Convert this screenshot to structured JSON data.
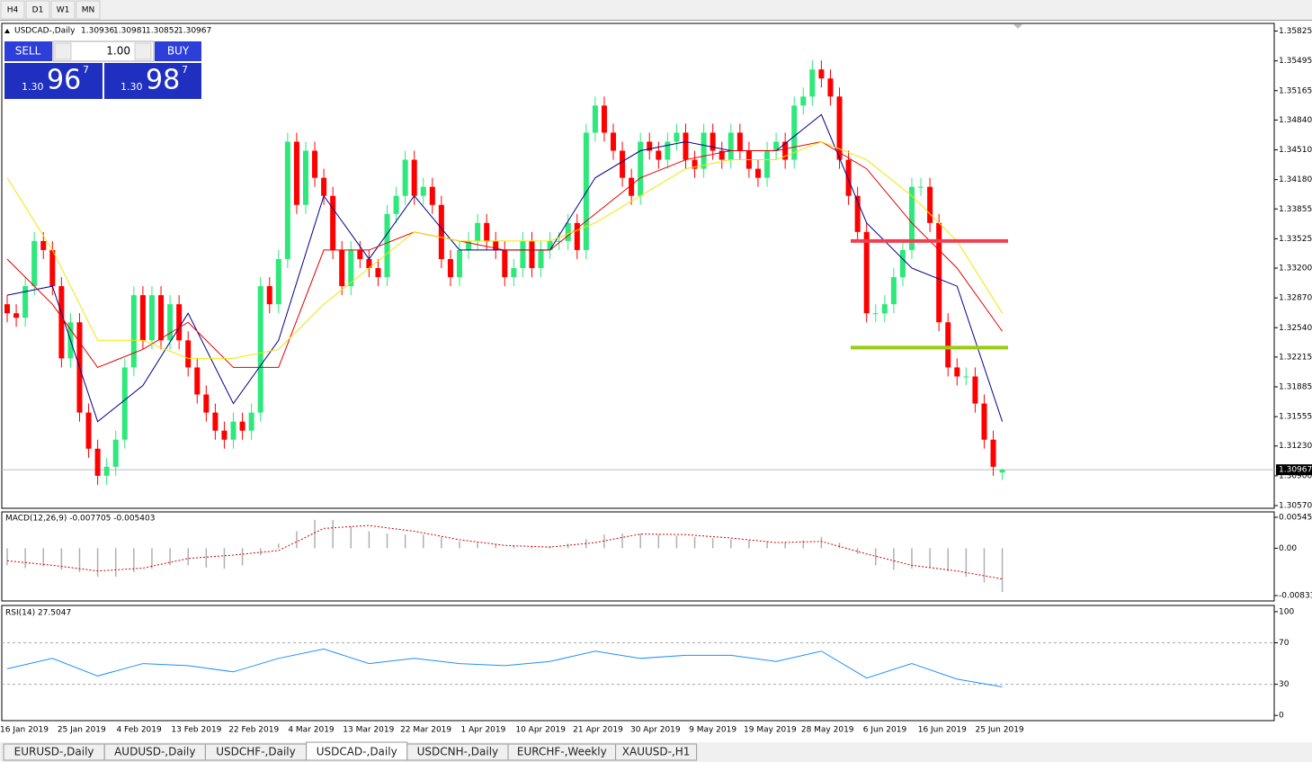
{
  "toolbar": {
    "timeframes": [
      "H4",
      "D1",
      "W1",
      "MN"
    ]
  },
  "tabs": {
    "items": [
      "EURUSD-,Daily",
      "AUDUSD-,Daily",
      "USDCHF-,Daily",
      "USDCAD-,Daily",
      "USDCNH-,Daily",
      "EURCHF-,Weekly",
      "XAUUSD-,H1"
    ],
    "active": 3
  },
  "trade_panel": {
    "volume": "1.00",
    "sell": {
      "label": "SELL",
      "prefix": "1.30",
      "main": "96",
      "sup": "7"
    },
    "buy": {
      "label": "BUY",
      "prefix": "1.30",
      "main": "98",
      "sup": "7"
    }
  },
  "chart_data": [
    {
      "type": "candlestick",
      "title": "USDCAD-,Daily",
      "header_values": [
        "1.30936",
        "1.30981",
        "1.30852",
        "1.30967"
      ],
      "last_price": 1.30967,
      "open": [
        1.328,
        1.327,
        1.3265,
        1.33,
        1.335,
        1.334,
        1.33,
        1.322,
        1.326,
        1.316,
        1.312,
        1.309,
        1.31,
        1.313,
        1.321,
        1.329,
        1.324,
        1.329,
        1.324,
        1.328,
        1.324,
        1.321,
        1.318,
        1.316,
        1.314,
        1.313,
        1.315,
        1.314,
        1.316,
        1.33,
        1.328,
        1.333,
        1.346,
        1.339,
        1.345,
        1.342,
        1.34,
        1.334,
        1.33,
        1.334,
        1.333,
        1.332,
        1.331,
        1.338,
        1.34,
        1.344,
        1.34,
        1.341,
        1.339,
        1.333,
        1.331,
        1.334,
        1.335,
        1.337,
        1.335,
        1.334,
        1.331,
        1.332,
        1.335,
        1.332,
        1.334,
        1.335,
        1.335,
        1.337,
        1.334,
        1.347,
        1.35,
        1.347,
        1.345,
        1.342,
        1.34,
        1.346,
        1.345,
        1.344,
        1.346,
        1.347,
        1.344,
        1.343,
        1.347,
        1.345,
        1.344,
        1.347,
        1.345,
        1.343,
        1.342,
        1.345,
        1.346,
        1.344,
        1.35,
        1.351,
        1.354,
        1.353,
        1.351,
        1.344,
        1.34,
        1.336,
        1.327,
        1.327,
        1.328,
        1.331,
        1.334,
        1.341,
        1.341,
        1.337,
        1.326,
        1.321,
        1.32,
        1.32,
        1.317,
        1.313,
        1.30936
      ],
      "high": [
        1.329,
        1.328,
        1.331,
        1.336,
        1.336,
        1.335,
        1.331,
        1.327,
        1.327,
        1.317,
        1.313,
        1.311,
        1.314,
        1.322,
        1.33,
        1.33,
        1.33,
        1.33,
        1.329,
        1.329,
        1.325,
        1.322,
        1.319,
        1.317,
        1.315,
        1.316,
        1.316,
        1.317,
        1.331,
        1.331,
        1.334,
        1.347,
        1.347,
        1.346,
        1.346,
        1.343,
        1.341,
        1.335,
        1.335,
        1.335,
        1.334,
        1.333,
        1.339,
        1.341,
        1.345,
        1.345,
        1.342,
        1.342,
        1.34,
        1.334,
        1.335,
        1.336,
        1.338,
        1.338,
        1.336,
        1.335,
        1.333,
        1.336,
        1.336,
        1.335,
        1.336,
        1.336,
        1.338,
        1.338,
        1.348,
        1.351,
        1.351,
        1.348,
        1.346,
        1.343,
        1.347,
        1.347,
        1.346,
        1.347,
        1.348,
        1.348,
        1.345,
        1.348,
        1.348,
        1.346,
        1.348,
        1.348,
        1.346,
        1.344,
        1.346,
        1.347,
        1.347,
        1.351,
        1.352,
        1.355,
        1.355,
        1.354,
        1.352,
        1.345,
        1.341,
        1.337,
        1.328,
        1.329,
        1.332,
        1.335,
        1.342,
        1.342,
        1.342,
        1.338,
        1.327,
        1.322,
        1.321,
        1.321,
        1.318,
        1.314,
        1.30981
      ],
      "low": [
        1.326,
        1.3255,
        1.3255,
        1.329,
        1.333,
        1.329,
        1.321,
        1.321,
        1.315,
        1.311,
        1.308,
        1.308,
        1.309,
        1.312,
        1.32,
        1.323,
        1.323,
        1.323,
        1.323,
        1.323,
        1.32,
        1.317,
        1.315,
        1.313,
        1.312,
        1.312,
        1.313,
        1.313,
        1.315,
        1.327,
        1.327,
        1.332,
        1.338,
        1.338,
        1.341,
        1.339,
        1.333,
        1.329,
        1.329,
        1.332,
        1.331,
        1.33,
        1.33,
        1.337,
        1.339,
        1.339,
        1.339,
        1.338,
        1.332,
        1.33,
        1.33,
        1.333,
        1.334,
        1.334,
        1.333,
        1.33,
        1.33,
        1.331,
        1.331,
        1.331,
        1.333,
        1.334,
        1.334,
        1.333,
        1.333,
        1.346,
        1.346,
        1.344,
        1.341,
        1.339,
        1.339,
        1.344,
        1.343,
        1.343,
        1.345,
        1.343,
        1.342,
        1.342,
        1.344,
        1.343,
        1.343,
        1.344,
        1.342,
        1.341,
        1.341,
        1.344,
        1.343,
        1.343,
        1.349,
        1.35,
        1.352,
        1.35,
        1.343,
        1.339,
        1.335,
        1.326,
        1.326,
        1.326,
        1.327,
        1.33,
        1.333,
        1.34,
        1.336,
        1.325,
        1.32,
        1.319,
        1.319,
        1.316,
        1.312,
        1.309,
        1.30852
      ],
      "close": [
        1.327,
        1.3265,
        1.33,
        1.335,
        1.334,
        1.33,
        1.322,
        1.326,
        1.316,
        1.312,
        1.309,
        1.31,
        1.313,
        1.321,
        1.329,
        1.324,
        1.329,
        1.324,
        1.328,
        1.324,
        1.321,
        1.318,
        1.316,
        1.314,
        1.313,
        1.315,
        1.314,
        1.316,
        1.33,
        1.328,
        1.333,
        1.346,
        1.339,
        1.345,
        1.342,
        1.34,
        1.334,
        1.33,
        1.334,
        1.333,
        1.332,
        1.331,
        1.338,
        1.34,
        1.344,
        1.34,
        1.341,
        1.339,
        1.333,
        1.331,
        1.334,
        1.335,
        1.337,
        1.335,
        1.334,
        1.331,
        1.332,
        1.335,
        1.332,
        1.334,
        1.335,
        1.335,
        1.337,
        1.334,
        1.347,
        1.35,
        1.347,
        1.345,
        1.342,
        1.34,
        1.346,
        1.345,
        1.344,
        1.346,
        1.347,
        1.344,
        1.343,
        1.347,
        1.345,
        1.344,
        1.347,
        1.345,
        1.343,
        1.342,
        1.345,
        1.346,
        1.344,
        1.35,
        1.351,
        1.354,
        1.353,
        1.351,
        1.344,
        1.34,
        1.336,
        1.327,
        1.327,
        1.328,
        1.331,
        1.334,
        1.341,
        1.341,
        1.337,
        1.326,
        1.321,
        1.32,
        1.32,
        1.317,
        1.313,
        1.31,
        1.30967
      ],
      "up_color": "#2ee87c",
      "down_color": "#ff0000",
      "lines": [
        {
          "color": "#00008b",
          "values": [
            1.329,
            1.33,
            1.315,
            1.319,
            1.327,
            1.317,
            1.324,
            1.34,
            1.333,
            1.34,
            1.334,
            1.334,
            1.334,
            1.342,
            1.345,
            1.346,
            1.345,
            1.345,
            1.349,
            1.337,
            1.332,
            1.33,
            1.315
          ]
        },
        {
          "color": "#e00000",
          "values": [
            1.333,
            1.328,
            1.321,
            1.323,
            1.326,
            1.321,
            1.321,
            1.334,
            1.334,
            1.336,
            1.335,
            1.334,
            1.334,
            1.338,
            1.342,
            1.344,
            1.345,
            1.345,
            1.346,
            1.343,
            1.337,
            1.332,
            1.325
          ]
        },
        {
          "color": "#f2e600",
          "values": [
            1.342,
            1.334,
            1.324,
            1.324,
            1.322,
            1.322,
            1.323,
            1.328,
            1.332,
            1.336,
            1.335,
            1.335,
            1.335,
            1.337,
            1.34,
            1.343,
            1.344,
            1.344,
            1.346,
            1.344,
            1.34,
            1.335,
            1.327
          ]
        }
      ],
      "levels": [
        {
          "value": 1.335,
          "color": "#f04050"
        },
        {
          "value": 1.3232,
          "color": "#9acd10"
        }
      ],
      "ylim": [
        1.3054,
        1.359
      ],
      "yticks": [
        1.35825,
        1.35495,
        1.35165,
        {
          "value": 1.3484,
          "label": "1.34840"
        },
        {
          "value": 1.3451,
          "label": "1.34510"
        },
        {
          "value": 1.3418,
          "label": "1.34180"
        },
        1.33855,
        1.33525,
        {
          "value": 1.332,
          "label": "1.33200"
        },
        {
          "value": 1.3287,
          "label": "1.32870"
        },
        {
          "value": 1.3254,
          "label": "1.32540"
        },
        1.32215,
        1.31885,
        1.31555,
        {
          "value": 1.3123,
          "label": "1.31230"
        },
        {
          "value": 1.309,
          "label": "1.30900"
        },
        {
          "value": 1.3057,
          "label": "1.30570"
        }
      ],
      "date_labels": [
        "16 Jan 2019",
        "25 Jan 2019",
        "4 Feb 2019",
        "13 Feb 2019",
        "22 Feb 2019",
        "4 Mar 2019",
        "13 Mar 2019",
        "22 Mar 2019",
        "1 Apr 2019",
        "10 Apr 2019",
        "21 Apr 2019",
        "30 Apr 2019",
        "9 May 2019",
        "19 May 2019",
        "28 May 2019",
        "6 Jun 2019",
        "16 Jun 2019",
        "25 Jun 2019"
      ]
    },
    {
      "type": "macd",
      "title": "MACD(12,26,9) -0.007705 -0.005403",
      "histogram": [
        -0.003,
        -0.0035,
        -0.0032,
        -0.0038,
        -0.0042,
        -0.005,
        -0.005,
        -0.0042,
        -0.0036,
        -0.003,
        -0.003,
        -0.0034,
        -0.0036,
        -0.003,
        -0.0012,
        0.0008,
        0.003,
        0.005,
        0.005,
        0.0038,
        0.003,
        0.0026,
        0.0024,
        0.0024,
        0.002,
        0.0012,
        0.001,
        0.0008,
        0.0005,
        0.0004,
        0.0004,
        0.0008,
        0.0016,
        0.0024,
        0.0026,
        0.0026,
        0.0024,
        0.0022,
        0.002,
        0.0018,
        0.0016,
        0.0014,
        0.0012,
        0.001,
        0.0014,
        0.002,
        0.001,
        -0.001,
        -0.003,
        -0.0038,
        -0.0036,
        -0.0034,
        -0.004,
        -0.005,
        -0.006,
        -0.007705
      ],
      "signal": [
        -0.0022,
        -0.003,
        -0.004,
        -0.0035,
        -0.0018,
        -0.0012,
        -0.0004,
        0.0035,
        0.004,
        0.003,
        0.0015,
        0.0005,
        0.0002,
        0.001,
        0.0025,
        0.0024,
        0.0018,
        0.001,
        0.0012,
        -0.001,
        -0.003,
        -0.004,
        -0.005403
      ],
      "hist_color": "#b0b0b0",
      "signal_color": "#d00000",
      "ylim": [
        -0.00928,
        0.0064
      ],
      "yticks": [
        0.005454,
        {
          "value": 0,
          "label": "0.00"
        },
        -0.008332
      ]
    },
    {
      "type": "rsi",
      "title": "RSI(14) 27.5047",
      "values": [
        45,
        55,
        38,
        50,
        48,
        42,
        55,
        64,
        50,
        55,
        50,
        48,
        52,
        62,
        55,
        58,
        58,
        52,
        62,
        36,
        50,
        35,
        27.5047
      ],
      "color": "#1e90ff",
      "levels": [
        70,
        30
      ],
      "ylim": [
        -5,
        106
      ],
      "yticks": [
        100,
        70,
        30,
        0
      ]
    }
  ]
}
